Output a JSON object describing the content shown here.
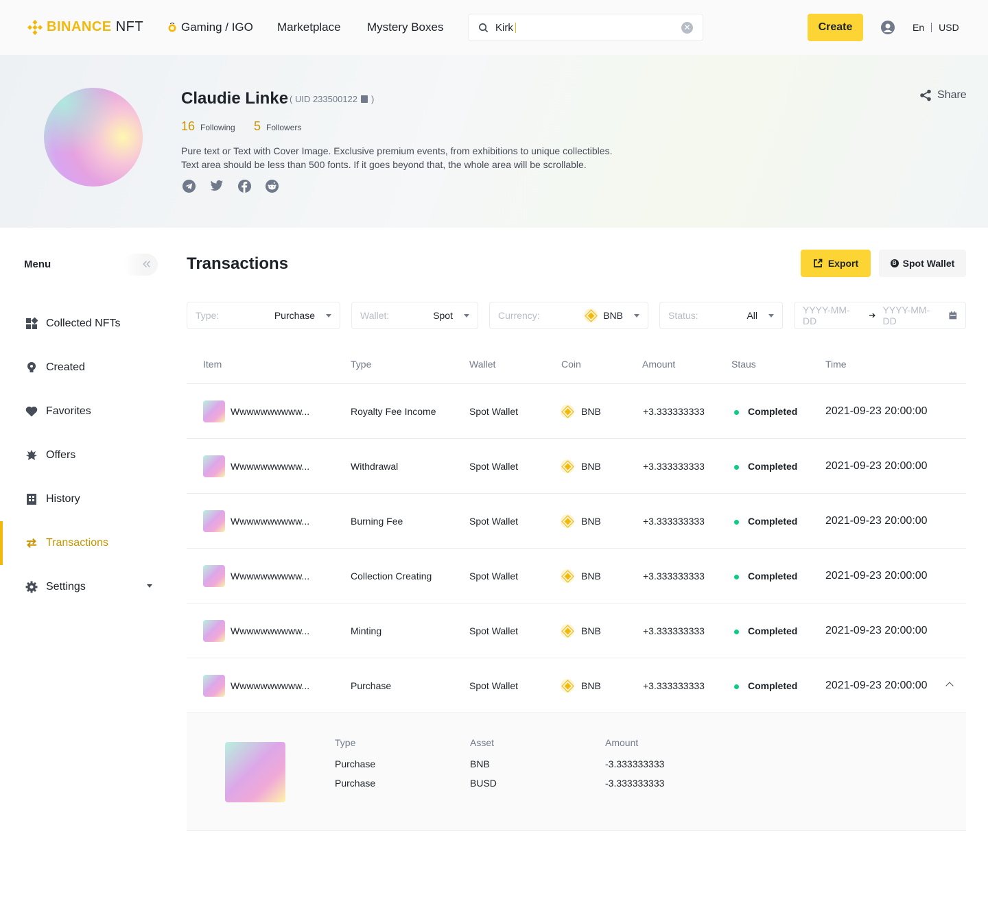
{
  "header": {
    "logo_brand": "BINANCE",
    "logo_product": "NFT",
    "nav": [
      {
        "label": "Gaming / IGO"
      },
      {
        "label": "Marketplace"
      },
      {
        "label": "Mystery Boxes"
      }
    ],
    "search_value": "Kirk",
    "create_label": "Create",
    "lang": "En",
    "currency": "USD"
  },
  "profile": {
    "name": "Claudie Linke",
    "uid": "( UID 233500122",
    "uid_close": ")",
    "following_count": "16",
    "following_label": "Following",
    "followers_count": "5",
    "followers_label": "Followers",
    "bio_line1": "Pure text or Text with Cover Image. Exclusive premium events, from exhibitions to unique collectibles.",
    "bio_line2": "Text area should be less than 500 fonts. If it goes beyond that, the whole area will be scrollable.",
    "share_label": "Share"
  },
  "sidebar": {
    "title": "Menu",
    "items": [
      {
        "label": "Collected NFTs"
      },
      {
        "label": "Created"
      },
      {
        "label": "Favorites"
      },
      {
        "label": "Offers"
      },
      {
        "label": "History"
      },
      {
        "label": "Transactions"
      },
      {
        "label": "Settings"
      }
    ]
  },
  "main": {
    "title": "Transactions",
    "export_label": "Export",
    "spot_wallet_label": "Spot Wallet"
  },
  "filters": {
    "type_label": "Type:",
    "type_value": "Purchase",
    "wallet_label": "Wallet:",
    "wallet_value": "Spot",
    "currency_label": "Currency:",
    "currency_value": "BNB",
    "status_label": "Status:",
    "status_value": "All",
    "date_start": "YYYY-MM-DD",
    "date_end": "YYYY-MM-DD"
  },
  "table": {
    "headers": [
      "Item",
      "Type",
      "Wallet",
      "Coin",
      "Amount",
      "Staus",
      "Time"
    ],
    "rows": [
      {
        "item": "Wwwwwwwwww...",
        "type": "Royalty Fee Income",
        "wallet": "Spot Wallet",
        "coin": "BNB",
        "amount": "+3.333333333",
        "status": "Completed",
        "time": "2021-09-23 20:00:00"
      },
      {
        "item": "Wwwwwwwwww...",
        "type": "Withdrawal",
        "wallet": "Spot Wallet",
        "coin": "BNB",
        "amount": "+3.333333333",
        "status": "Completed",
        "time": "2021-09-23 20:00:00"
      },
      {
        "item": "Wwwwwwwwww...",
        "type": "Burning Fee",
        "wallet": "Spot Wallet",
        "coin": "BNB",
        "amount": "+3.333333333",
        "status": "Completed",
        "time": "2021-09-23 20:00:00"
      },
      {
        "item": "Wwwwwwwwww...",
        "type": "Collection Creating",
        "wallet": "Spot Wallet",
        "coin": "BNB",
        "amount": "+3.333333333",
        "status": "Completed",
        "time": "2021-09-23 20:00:00"
      },
      {
        "item": "Wwwwwwwwww...",
        "type": "Minting",
        "wallet": "Spot Wallet",
        "coin": "BNB",
        "amount": "+3.333333333",
        "status": "Completed",
        "time": "2021-09-23 20:00:00"
      },
      {
        "item": "Wwwwwwwwww...",
        "type": "Purchase",
        "wallet": "Spot Wallet",
        "coin": "BNB",
        "amount": "+3.333333333",
        "status": "Completed",
        "time": "2021-09-23 20:00:00"
      }
    ]
  },
  "detail": {
    "headers": [
      "Type",
      "Asset",
      "Amount"
    ],
    "rows": [
      {
        "type": "Purchase",
        "asset": "BNB",
        "amount": "-3.333333333"
      },
      {
        "type": "Purchase",
        "asset": "BUSD",
        "amount": "-3.333333333"
      }
    ]
  },
  "colors": {
    "brand": "#F0B90B",
    "button": "#FCD535",
    "success": "#0ECB81",
    "active_text": "#C99400"
  }
}
